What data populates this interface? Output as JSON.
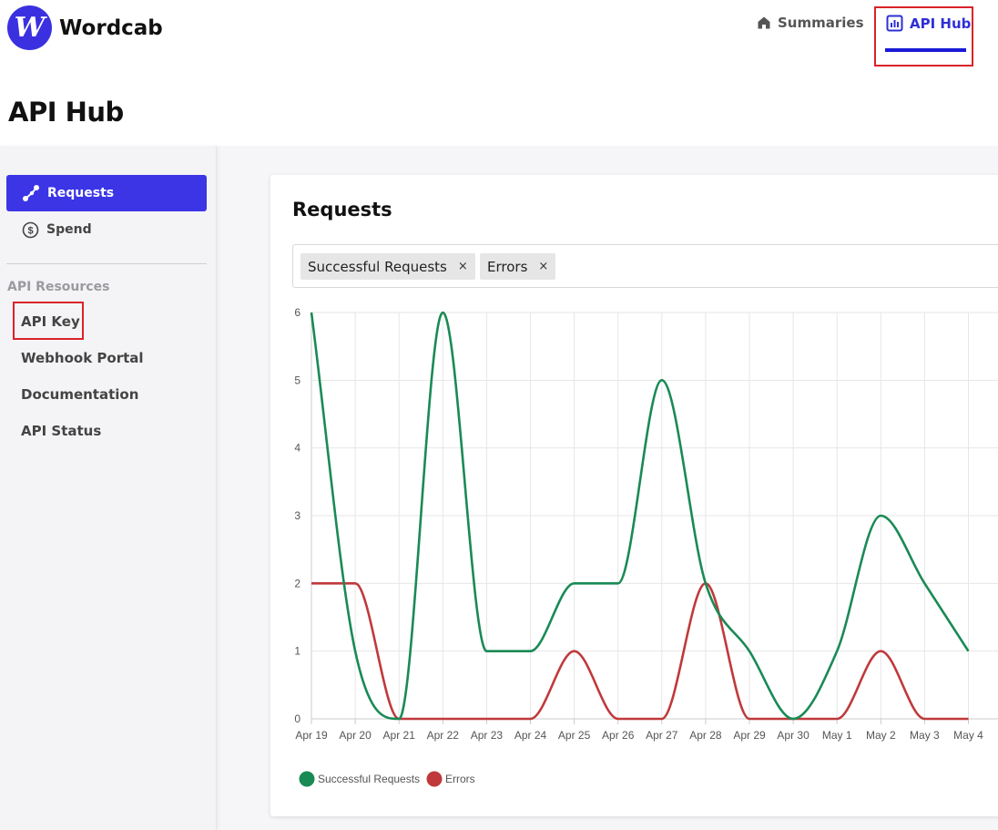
{
  "brand": {
    "name": "Wordcab",
    "logo_letter": "W",
    "color": "#3b30e0"
  },
  "nav": {
    "summaries_label": "Summaries",
    "apihub_label": "API Hub",
    "active_color": "#2f2fd6"
  },
  "page": {
    "title": "API Hub"
  },
  "sidebar": {
    "requests_label": "Requests",
    "spend_label": "Spend",
    "section_label": "API Resources",
    "links": [
      {
        "label": "API Key"
      },
      {
        "label": "Webhook Portal"
      },
      {
        "label": "Documentation"
      },
      {
        "label": "API Status"
      }
    ]
  },
  "card": {
    "title": "Requests",
    "filters": [
      {
        "label": "Successful Requests",
        "remove": "×"
      },
      {
        "label": "Errors",
        "remove": "×"
      }
    ]
  },
  "chart_data": {
    "type": "line",
    "categories": [
      "Apr 19",
      "Apr 20",
      "Apr 21",
      "Apr 22",
      "Apr 23",
      "Apr 24",
      "Apr 25",
      "Apr 26",
      "Apr 27",
      "Apr 28",
      "Apr 29",
      "Apr 30",
      "May 1",
      "May 2",
      "May 3",
      "May 4"
    ],
    "series": [
      {
        "name": "Successful Requests",
        "color": "#1a8a55",
        "values": [
          6,
          1,
          0,
          6,
          1,
          1,
          2,
          2,
          5,
          2,
          1,
          0,
          1,
          3,
          2,
          1
        ]
      },
      {
        "name": "Errors",
        "color": "#c0393b",
        "values": [
          2,
          2,
          0,
          0,
          0,
          0,
          1,
          0,
          0,
          2,
          0,
          0,
          0,
          1,
          0,
          0
        ]
      }
    ],
    "ylim": [
      0,
      6
    ],
    "yticks": [
      "0",
      "1",
      "2",
      "3",
      "4",
      "5",
      "6"
    ],
    "grid": true,
    "legend": "bottom-left"
  }
}
